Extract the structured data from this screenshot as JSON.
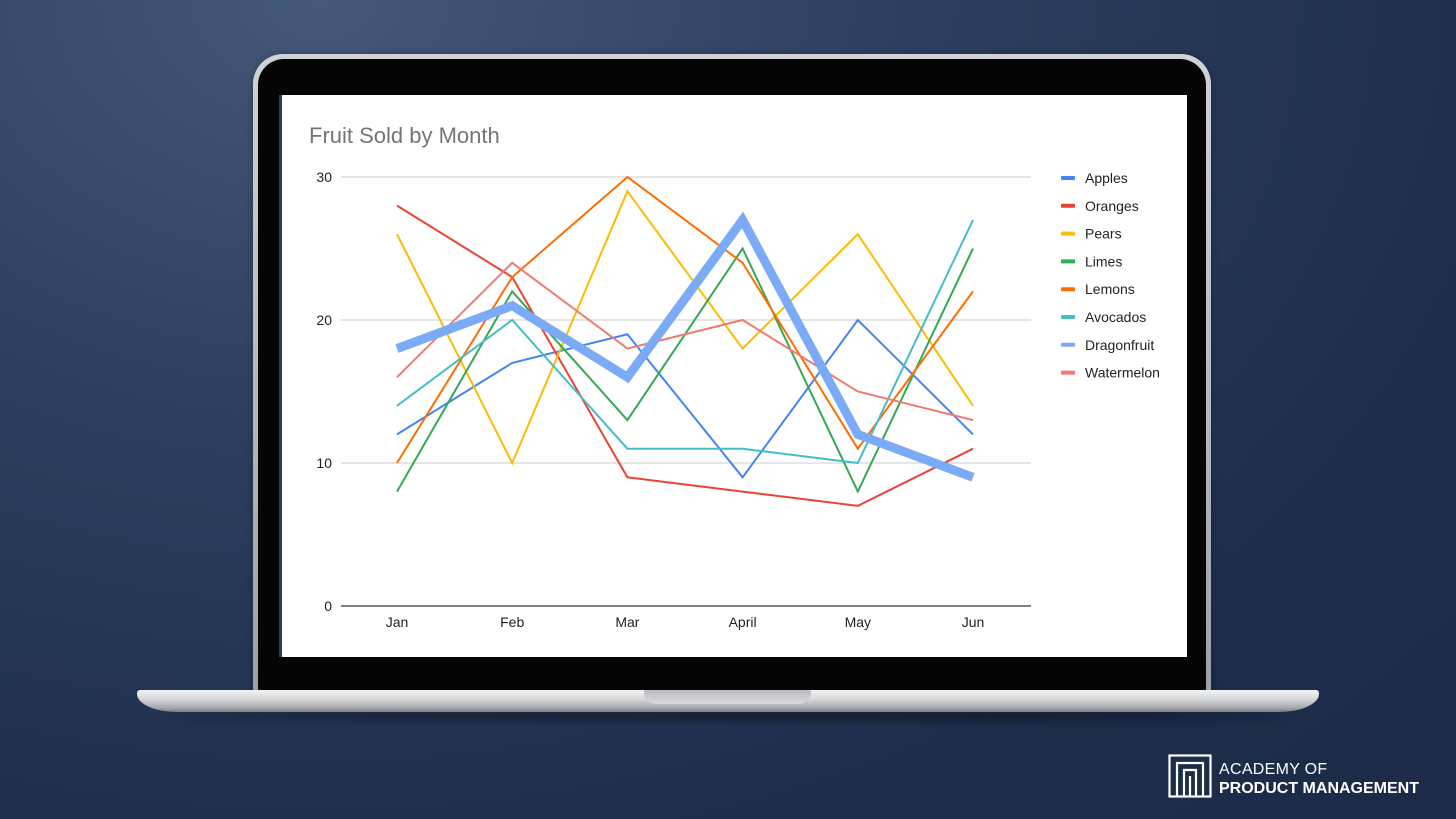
{
  "chart_data": {
    "type": "line",
    "title": "Fruit Sold by Month",
    "xlabel": "",
    "ylabel": "",
    "categories": [
      "Jan",
      "Feb",
      "Mar",
      "April",
      "May",
      "Jun"
    ],
    "ylim": [
      0,
      30
    ],
    "yticks": [
      0,
      10,
      20,
      30
    ],
    "grid": true,
    "legend_position": "right",
    "highlighted_series": "Dragonfruit",
    "series": [
      {
        "name": "Apples",
        "color": "#4285f4",
        "values": [
          12,
          17,
          19,
          9,
          20,
          12
        ]
      },
      {
        "name": "Oranges",
        "color": "#ea4335",
        "values": [
          28,
          23,
          9,
          8,
          7,
          11
        ]
      },
      {
        "name": "Pears",
        "color": "#fbbc04",
        "values": [
          26,
          10,
          29,
          18,
          26,
          14
        ]
      },
      {
        "name": "Limes",
        "color": "#34a853",
        "values": [
          8,
          22,
          13,
          25,
          8,
          25
        ]
      },
      {
        "name": "Lemons",
        "color": "#ff6d01",
        "values": [
          10,
          23,
          30,
          24,
          11,
          22
        ]
      },
      {
        "name": "Avocados",
        "color": "#46bdc6",
        "values": [
          14,
          20,
          11,
          11,
          10,
          27
        ]
      },
      {
        "name": "Dragonfruit",
        "color": "#7baaf7",
        "values": [
          18,
          21,
          16,
          27,
          12,
          9
        ]
      },
      {
        "name": "Watermelon",
        "color": "#f07b72",
        "values": [
          16,
          24,
          18,
          20,
          15,
          13
        ]
      }
    ]
  },
  "brand": {
    "line1": "ACADEMY OF",
    "line2": "PRODUCT MANAGEMENT",
    "logo_icon": "academy-logo-icon"
  }
}
